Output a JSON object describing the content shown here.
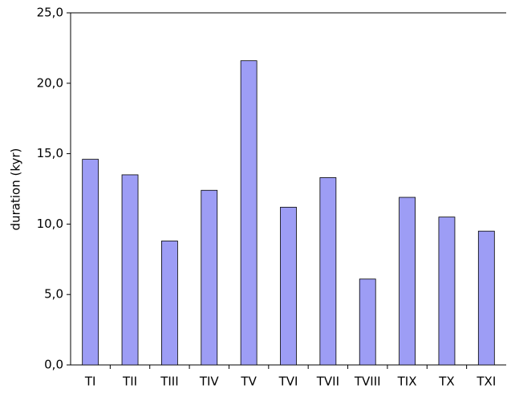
{
  "chart_data": {
    "type": "bar",
    "y_label": "duration (kyr)",
    "categories": [
      "TI",
      "TII",
      "TIII",
      "TIV",
      "TV",
      "TVI",
      "TVII",
      "TVIII",
      "TIX",
      "TX",
      "TXI"
    ],
    "values": [
      14.6,
      13.5,
      8.8,
      12.4,
      21.6,
      11.2,
      13.3,
      6.1,
      11.9,
      10.5,
      9.5
    ],
    "color": "#9d9df5",
    "ylim": [
      0,
      25
    ],
    "yticks": [
      {
        "value": 0,
        "label": "0,0"
      },
      {
        "value": 5,
        "label": "5,0"
      },
      {
        "value": 10,
        "label": "10,0"
      },
      {
        "value": 15,
        "label": "15,0"
      },
      {
        "value": 20,
        "label": "20,0"
      },
      {
        "value": 25,
        "label": "25,0"
      }
    ],
    "grid": false
  }
}
